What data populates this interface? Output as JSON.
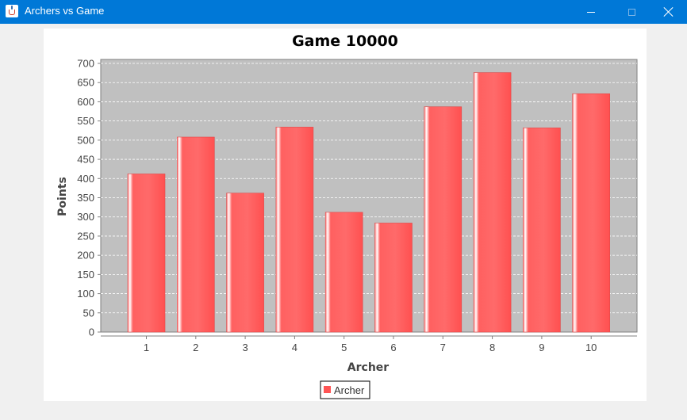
{
  "window": {
    "title": "Archers vs Game",
    "icon": "java-cup-icon"
  },
  "colors": {
    "titlebar": "#0078d7",
    "plot_background": "#c0c0c0",
    "bar": "#ff5555",
    "bar_highlight": "#ffffff",
    "gridline": "#ffffff"
  },
  "chart_data": {
    "type": "bar",
    "title": "Game 10000",
    "xlabel": "Archer",
    "ylabel": "Points",
    "categories": [
      "1",
      "2",
      "3",
      "4",
      "5",
      "6",
      "7",
      "8",
      "9",
      "10"
    ],
    "series": [
      {
        "name": "Archer",
        "values": [
          412,
          508,
          362,
          534,
          312,
          284,
          587,
          676,
          532,
          621
        ]
      }
    ],
    "ylim": [
      0,
      700
    ],
    "yticks": [
      0,
      50,
      100,
      150,
      200,
      250,
      300,
      350,
      400,
      450,
      500,
      550,
      600,
      650,
      700
    ],
    "grid": true,
    "legend_position": "bottom"
  }
}
